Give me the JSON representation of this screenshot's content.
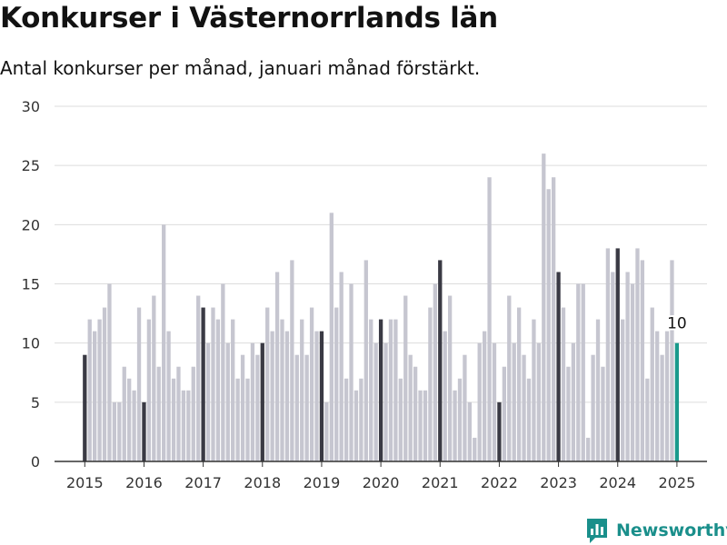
{
  "header": {
    "title": "Konkurser i Västernorrlands län",
    "subtitle": "Antal konkurser per månad, januari månad förstärkt."
  },
  "brand": {
    "name": "Newsworthy",
    "icon": "newsworthy-logo-icon",
    "color": "#1a8f8b"
  },
  "colors": {
    "bar": "#c6c6d0",
    "january": "#3a3a44",
    "latest": "#1a9a8c",
    "grid": "#dcdcdc",
    "axis": "#333333"
  },
  "chart_data": {
    "type": "bar",
    "ylim": [
      0,
      30
    ],
    "yticks": [
      "0",
      "5",
      "10",
      "15",
      "20",
      "25",
      "30"
    ],
    "xticks": [
      "2015",
      "2016",
      "2017",
      "2018",
      "2019",
      "2020",
      "2021",
      "2022",
      "2023",
      "2024",
      "2025"
    ],
    "start": "2015-01",
    "values": [
      9,
      12,
      11,
      12,
      13,
      15,
      5,
      5,
      8,
      7,
      6,
      13,
      5,
      12,
      14,
      8,
      20,
      11,
      7,
      8,
      6,
      6,
      8,
      14,
      13,
      10,
      13,
      12,
      15,
      10,
      12,
      7,
      9,
      7,
      10,
      9,
      10,
      13,
      11,
      16,
      12,
      11,
      17,
      9,
      12,
      9,
      13,
      11,
      11,
      5,
      21,
      13,
      16,
      7,
      15,
      6,
      7,
      17,
      12,
      10,
      12,
      10,
      12,
      12,
      7,
      14,
      9,
      8,
      6,
      6,
      13,
      15,
      17,
      11,
      14,
      6,
      7,
      9,
      5,
      2,
      10,
      11,
      24,
      10,
      5,
      8,
      14,
      10,
      13,
      9,
      7,
      12,
      10,
      26,
      23,
      24,
      16,
      13,
      8,
      10,
      15,
      15,
      2,
      9,
      12,
      8,
      18,
      16,
      18,
      12,
      16,
      15,
      18,
      17,
      7,
      13,
      11,
      9,
      11,
      17,
      10
    ],
    "highlight": "january",
    "last_label": "10"
  }
}
